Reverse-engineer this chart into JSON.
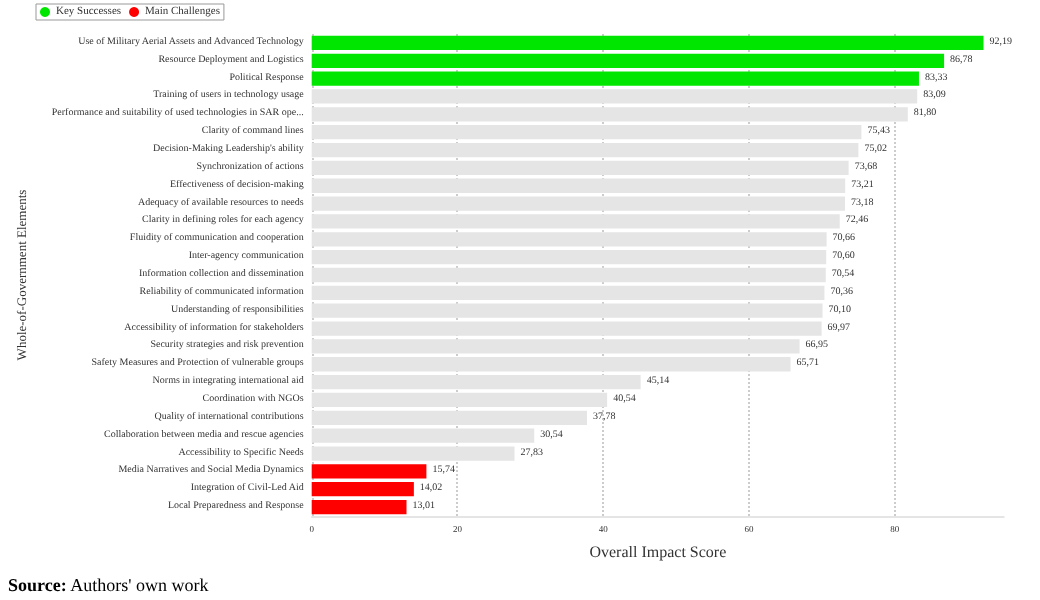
{
  "chart_data": {
    "type": "bar",
    "orientation": "horizontal",
    "xlabel": "Overall Impact Score",
    "ylabel": "Whole-of-Government Elements",
    "categories": [
      "Use of Military Aerial Assets and Advanced Technology",
      "Resource Deployment and Logistics",
      "Political Response",
      "Training of users in technology usage",
      "Performance and suitability of used technologies in SAR ope...",
      "Clarity of command lines",
      "Decision-Making Leadership's ability",
      "Synchronization of actions",
      "Effectiveness of decision-making",
      "Adequacy of available resources to needs",
      "Clarity in defining roles for each agency",
      "Fluidity of communication and cooperation",
      "Inter-agency communication",
      "Information collection and dissemination",
      "Reliability of communicated information",
      "Understanding of responsibilities",
      "Accessibility of information for stakeholders",
      "Security strategies and risk prevention",
      "Safety Measures and Protection of vulnerable groups",
      "Norms in integrating international aid",
      "Coordination with NGOs",
      "Quality of international contributions",
      "Collaboration between media and rescue agencies",
      "Accessibility to Specific Needs",
      "Media Narratives and Social Media Dynamics",
      "Integration of Civil-Led Aid",
      "Local Preparedness and Response"
    ],
    "series": [
      {
        "name": "Key Successes",
        "color": "#00e600",
        "values": [
          92.19,
          86.78,
          83.33,
          null,
          null,
          null,
          null,
          null,
          null,
          null,
          null,
          null,
          null,
          null,
          null,
          null,
          null,
          null,
          null,
          null,
          null,
          null,
          null,
          null,
          null,
          null,
          null
        ],
        "value_labels": [
          "92,19",
          "86,78",
          "83,33",
          null,
          null,
          null,
          null,
          null,
          null,
          null,
          null,
          null,
          null,
          null,
          null,
          null,
          null,
          null,
          null,
          null,
          null,
          null,
          null,
          null,
          null,
          null,
          null
        ]
      },
      {
        "color": "#e5e5e5",
        "values": [
          null,
          null,
          null,
          83.09,
          81.8,
          75.43,
          75.02,
          73.68,
          73.21,
          73.18,
          72.46,
          70.66,
          70.6,
          70.54,
          70.36,
          70.1,
          69.97,
          66.95,
          65.71,
          45.14,
          40.54,
          37.78,
          30.54,
          27.83,
          null,
          null,
          null
        ],
        "value_labels": [
          null,
          null,
          null,
          "83,09",
          "81,80",
          "75,43",
          "75,02",
          "73,68",
          "73,21",
          "73,18",
          "72,46",
          "70,66",
          "70,60",
          "70,54",
          "70,36",
          "70,10",
          "69,97",
          "66,95",
          "65,71",
          "45,14",
          "40,54",
          "37,78",
          "30,54",
          "27,83",
          null,
          null,
          null
        ]
      },
      {
        "name": "Main Challenges",
        "color": "#ff0000",
        "values": [
          null,
          null,
          null,
          null,
          null,
          null,
          null,
          null,
          null,
          null,
          null,
          null,
          null,
          null,
          null,
          null,
          null,
          null,
          null,
          null,
          null,
          null,
          null,
          null,
          15.74,
          14.02,
          13.01
        ],
        "value_labels": [
          null,
          null,
          null,
          null,
          null,
          null,
          null,
          null,
          null,
          null,
          null,
          null,
          null,
          null,
          null,
          null,
          null,
          null,
          null,
          null,
          null,
          null,
          null,
          null,
          "15,74",
          "14,02",
          "13,01"
        ]
      }
    ],
    "xlim": [
      0,
      95
    ],
    "xticks": [
      0,
      20,
      40,
      60,
      80
    ],
    "grid": "x",
    "legend": "top left",
    "marker": "circle",
    "annotations": [
      "Source: Authors' own work"
    ]
  }
}
